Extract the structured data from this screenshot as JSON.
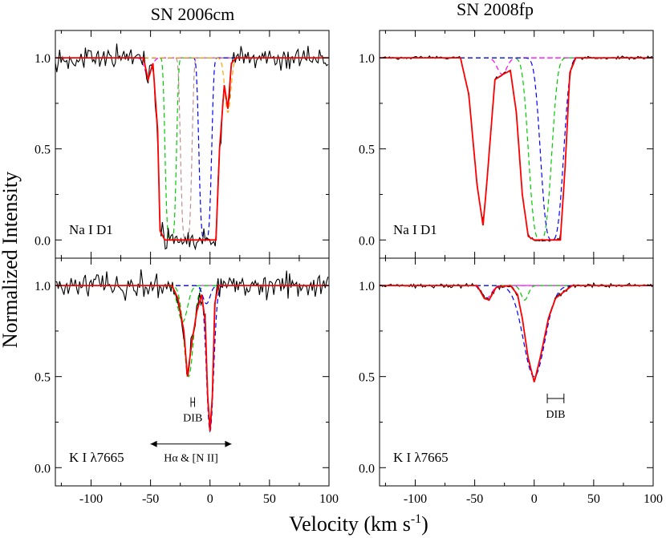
{
  "figure": {
    "ylabel": "Normalized Intensity",
    "xlabel_main": "Velocity (km s",
    "xlabel_sup": "-1",
    "xlabel_close": ")"
  },
  "colors": {
    "data": "#000000",
    "fit": "#ff0000",
    "green": "#00cc00",
    "blue": "#0000ff",
    "magenta": "#ff00ff",
    "brown": "#bc8f8f",
    "orange": "#ffa500"
  },
  "chart_data": [
    {
      "id": "sn2006cm_nai",
      "type": "line",
      "title": "SN 2006cm",
      "label": "Na I D1",
      "xlim": [
        -130,
        100
      ],
      "ylim": [
        -0.1,
        1.15
      ],
      "x_ticks": [
        -100,
        -50,
        0,
        50,
        100
      ],
      "y_ticks": [
        0.0,
        0.5,
        1.0
      ],
      "y_tick_labels": [
        "0.0",
        "0.5",
        "1.0"
      ],
      "show_x_ticklabels": false,
      "noise": 0.04,
      "components": [
        {
          "name": "",
          "color": "#ff00ff",
          "center": -52,
          "depth": 0.1,
          "width": 3
        },
        {
          "name": "",
          "color": "#00cc00",
          "center": -33,
          "depth": 1.0,
          "width": 4.5,
          "power": 4
        },
        {
          "name": "",
          "color": "#bc8f8f",
          "center": -20,
          "depth": 1.0,
          "width": 4.5,
          "power": 4
        },
        {
          "name": "",
          "color": "#0000ff",
          "center": -4,
          "depth": 1.0,
          "width": 5,
          "power": 4
        },
        {
          "name": "",
          "color": "#ffa500",
          "center": 15,
          "depth": 0.3,
          "width": 2.5
        }
      ],
      "fit": {
        "segments": [
          [
            -130,
            1.0
          ],
          [
            -56,
            1.0
          ],
          [
            -52,
            0.88
          ],
          [
            -48,
            0.97
          ],
          [
            -44,
            0.6
          ],
          [
            -42,
            0.05
          ],
          [
            -38,
            0.0
          ],
          [
            5,
            0.0
          ],
          [
            8,
            0.5
          ],
          [
            12,
            0.85
          ],
          [
            15,
            0.72
          ],
          [
            18,
            0.97
          ],
          [
            22,
            1.0
          ],
          [
            100,
            1.0
          ]
        ]
      }
    },
    {
      "id": "sn2008fp_nai",
      "type": "line",
      "title": "SN 2008fp",
      "label": "Na I D1",
      "xlim": [
        -130,
        100
      ],
      "ylim": [
        -0.1,
        1.15
      ],
      "x_ticks": [
        -100,
        -50,
        0,
        50,
        100
      ],
      "y_ticks": [
        0.0,
        0.5,
        1.0
      ],
      "y_tick_labels": [
        "0.0",
        "0.5",
        "1.0"
      ],
      "show_x_ticklabels": false,
      "noise": 0.006,
      "components": [
        {
          "name": "",
          "color": "#ff00ff",
          "center": -27,
          "depth": 0.09,
          "width": 4
        },
        {
          "name": "",
          "color": "#00cc00",
          "center": 5,
          "depth": 1.0,
          "width": 9,
          "power": 3
        },
        {
          "name": "",
          "color": "#0000ff",
          "center": 15,
          "depth": 1.0,
          "width": 9,
          "power": 3
        }
      ],
      "fit": {
        "segments": [
          [
            -130,
            1.0
          ],
          [
            -62,
            1.0
          ],
          [
            -55,
            0.8
          ],
          [
            -48,
            0.3
          ],
          [
            -43,
            0.08
          ],
          [
            -40,
            0.3
          ],
          [
            -33,
            0.88
          ],
          [
            -26,
            0.91
          ],
          [
            -20,
            0.93
          ],
          [
            -15,
            0.7
          ],
          [
            -10,
            0.25
          ],
          [
            -5,
            0.02
          ],
          [
            0,
            0.0
          ],
          [
            22,
            0.0
          ],
          [
            26,
            0.4
          ],
          [
            30,
            0.92
          ],
          [
            35,
            1.0
          ],
          [
            100,
            1.0
          ]
        ]
      }
    },
    {
      "id": "sn2006cm_ki",
      "type": "line",
      "title": "",
      "label": "K I λ7665",
      "xlim": [
        -130,
        100
      ],
      "ylim": [
        -0.1,
        1.15
      ],
      "x_ticks": [
        -100,
        -50,
        0,
        50,
        100
      ],
      "x_tick_labels": [
        "-100",
        "-50",
        "0",
        "50",
        "100"
      ],
      "y_ticks": [
        0.0,
        0.5,
        1.0
      ],
      "y_tick_labels": [
        "0.0",
        "0.5",
        "1.0"
      ],
      "show_x_ticklabels": true,
      "noise": 0.045,
      "components": [
        {
          "name": "",
          "color": "#00cc00",
          "center": -23,
          "depth": 0.2,
          "width": 4
        },
        {
          "name": "",
          "color": "#00cc00",
          "center": -18,
          "depth": 0.5,
          "width": 4
        },
        {
          "name": "",
          "color": "#0000ff",
          "center": -3,
          "depth": 0.1,
          "width": 3
        },
        {
          "name": "",
          "color": "#0000ff",
          "center": 0,
          "depth": 0.8,
          "width": 3
        }
      ],
      "fit": {
        "segments": [
          [
            -130,
            1.0
          ],
          [
            -32,
            1.0
          ],
          [
            -27,
            0.93
          ],
          [
            -22,
            0.75
          ],
          [
            -19,
            0.5
          ],
          [
            -15,
            0.7
          ],
          [
            -11,
            0.86
          ],
          [
            -7,
            0.95
          ],
          [
            -4,
            0.8
          ],
          [
            -2,
            0.4
          ],
          [
            0,
            0.2
          ],
          [
            2,
            0.4
          ],
          [
            4,
            0.9
          ],
          [
            7,
            1.0
          ],
          [
            100,
            1.0
          ]
        ]
      },
      "annotations": [
        {
          "type": "errorbar",
          "x_from": -16,
          "x_to": -13,
          "y": 0.36,
          "label": "DIB"
        },
        {
          "type": "arrow",
          "x_from": -50,
          "x_to": 18,
          "y": 0.13,
          "label": "Hα & [N II]"
        }
      ]
    },
    {
      "id": "sn2008fp_ki",
      "type": "line",
      "title": "",
      "label": "K I λ7665",
      "xlim": [
        -130,
        100
      ],
      "ylim": [
        -0.1,
        1.15
      ],
      "x_ticks": [
        -100,
        -50,
        0,
        50,
        100
      ],
      "x_tick_labels": [
        "-100",
        "-50",
        "0",
        "50",
        "100"
      ],
      "y_ticks": [
        0.0,
        0.5,
        1.0
      ],
      "y_tick_labels": [
        "0.0",
        "0.5",
        "1.0"
      ],
      "show_x_ticklabels": true,
      "noise": 0.008,
      "components": [
        {
          "name": "",
          "color": "#ff00ff",
          "center": -40,
          "depth": 0.07,
          "width": 4
        },
        {
          "name": "",
          "color": "#00cc00",
          "center": -8,
          "depth": 0.08,
          "width": 3
        },
        {
          "name": "",
          "color": "#0000ff",
          "center": 0,
          "depth": 0.5,
          "width": 9
        }
      ],
      "fit": {
        "segments": [
          [
            -130,
            1.0
          ],
          [
            -48,
            1.0
          ],
          [
            -42,
            0.93
          ],
          [
            -38,
            0.92
          ],
          [
            -32,
            0.99
          ],
          [
            -20,
            1.0
          ],
          [
            -14,
            0.95
          ],
          [
            -10,
            0.82
          ],
          [
            -5,
            0.6
          ],
          [
            0,
            0.47
          ],
          [
            5,
            0.6
          ],
          [
            12,
            0.82
          ],
          [
            18,
            0.93
          ],
          [
            28,
            0.98
          ],
          [
            32,
            1.0
          ],
          [
            100,
            1.0
          ]
        ]
      },
      "annotations": [
        {
          "type": "errorbar",
          "x_from": 11,
          "x_to": 25,
          "y": 0.38,
          "label": "DIB"
        }
      ]
    }
  ]
}
